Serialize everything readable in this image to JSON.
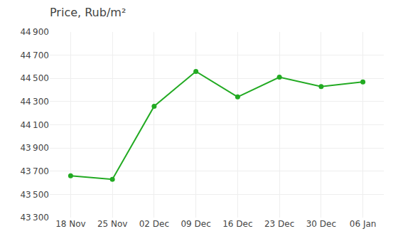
{
  "chart_data": {
    "type": "line",
    "title": "Price, Rub/m²",
    "categories": [
      "18 Nov",
      "25 Nov",
      "02 Dec",
      "09 Dec",
      "16 Dec",
      "23 Dec",
      "30 Dec",
      "06 Jan"
    ],
    "values": [
      43660,
      43630,
      44260,
      44560,
      44340,
      44510,
      44430,
      44470
    ],
    "color": "#22aa22",
    "marker": "circle",
    "ylim": [
      43300,
      44900
    ],
    "yticks": [
      {
        "value": 43300,
        "label": "43 300"
      },
      {
        "value": 43500,
        "label": "43 500"
      },
      {
        "value": 43700,
        "label": "43 700"
      },
      {
        "value": 43900,
        "label": "43 900"
      },
      {
        "value": 44100,
        "label": "44 100"
      },
      {
        "value": 44300,
        "label": "44 300"
      },
      {
        "value": 44500,
        "label": "44 500"
      },
      {
        "value": 44700,
        "label": "44 700"
      },
      {
        "value": 44900,
        "label": "44 900"
      }
    ],
    "grid": true
  }
}
